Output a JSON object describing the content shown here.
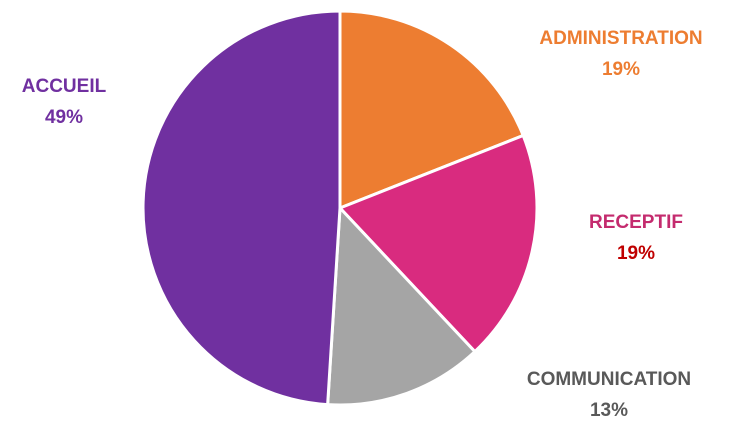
{
  "chart_data": {
    "type": "pie",
    "slices": [
      {
        "label": "ADMINISTRATION",
        "value": 19,
        "value_label": "19%",
        "color": "#ED7D31",
        "label_color": "#ED7D31",
        "value_color": "#ED7D31"
      },
      {
        "label": "RECEPTIF",
        "value": 19,
        "value_label": "19%",
        "color": "#D92B7F",
        "label_color": "#C42B6E",
        "value_color": "#C00000"
      },
      {
        "label": "COMMUNICATION",
        "value": 13,
        "value_label": "13%",
        "color": "#A5A5A5",
        "label_color": "#595959",
        "value_color": "#595959"
      },
      {
        "label": "ACCUEIL",
        "value": 49,
        "value_label": "49%",
        "color": "#7030A0",
        "label_color": "#7030A0",
        "value_color": "#7030A0"
      }
    ],
    "start_angle": "12 o'clock",
    "direction": "clockwise",
    "legend": "none"
  }
}
